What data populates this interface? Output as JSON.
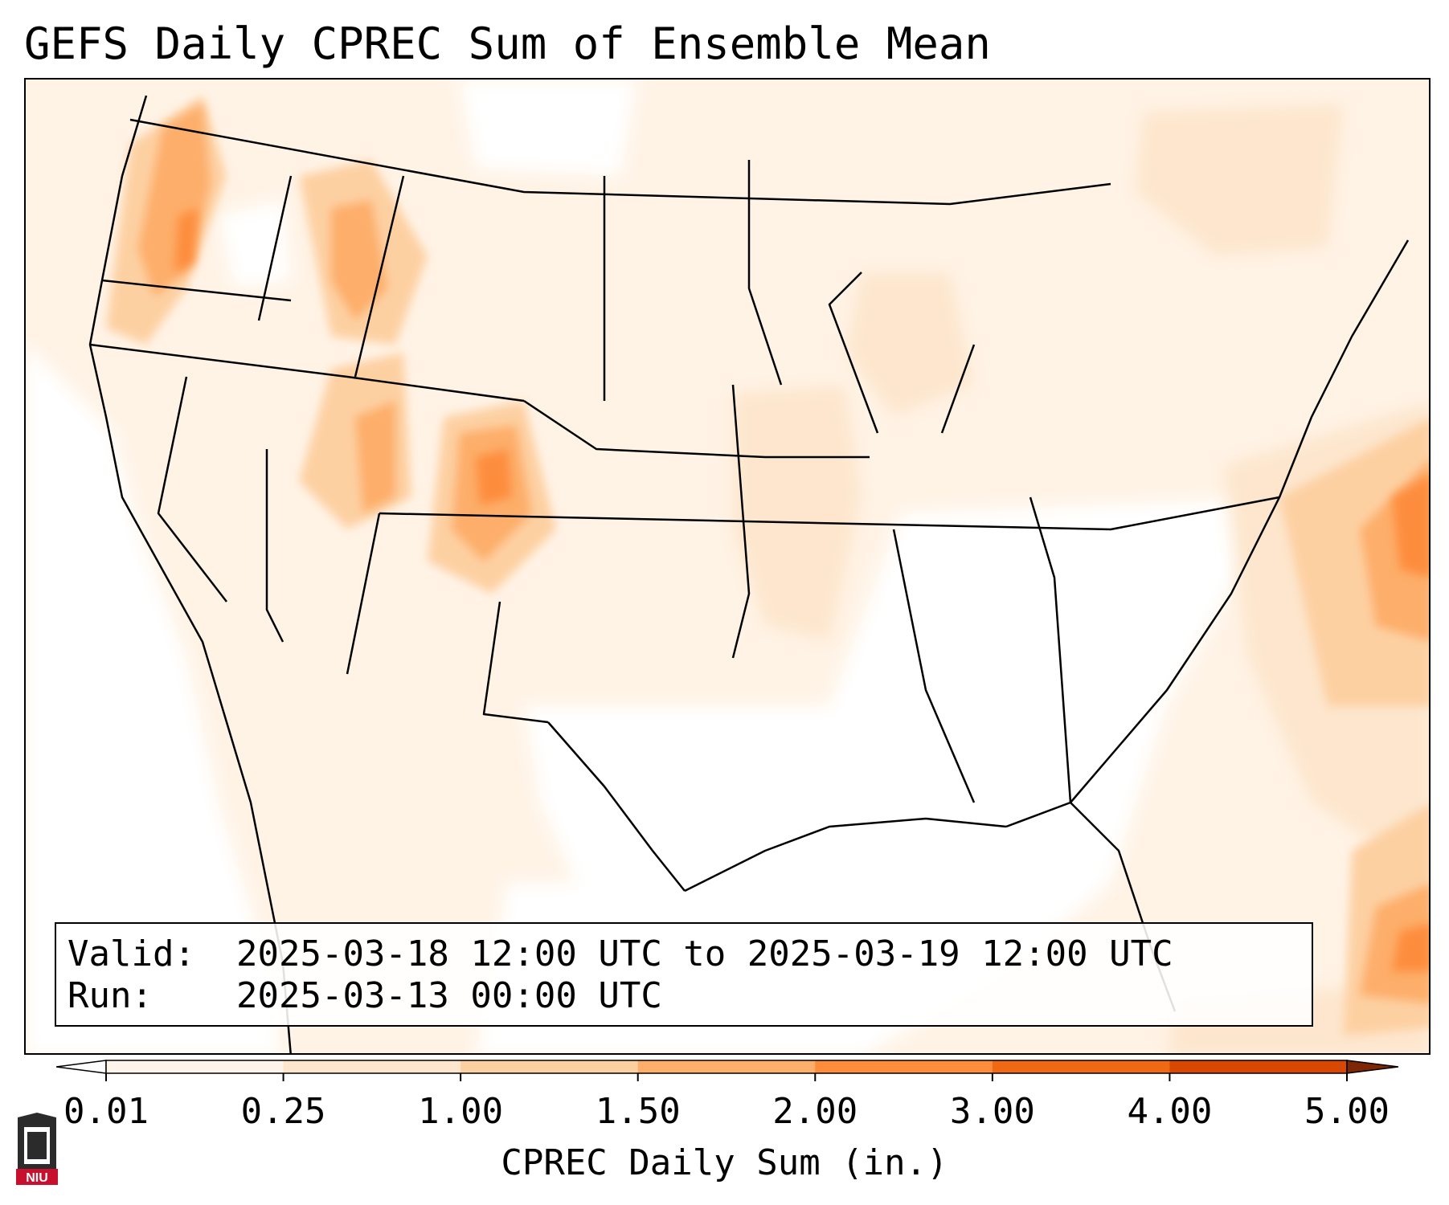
{
  "title": "GEFS Daily CPREC Sum of Ensemble Mean",
  "info": {
    "valid_label": "Valid:",
    "valid_value": "2025-03-18 12:00 UTC to 2025-03-19 12:00 UTC",
    "run_label": "Run:",
    "run_value": "2025-03-13 00:00 UTC"
  },
  "colorbar": {
    "label": "CPREC Daily Sum (in.)",
    "ticks": [
      "0.01",
      "0.25",
      "1.00",
      "1.50",
      "2.00",
      "3.00",
      "4.00",
      "5.00"
    ],
    "colors": [
      "#fff5eb",
      "#fee6ce",
      "#fdd0a2",
      "#fdae6b",
      "#fd8d3c",
      "#f16913",
      "#d94801",
      "#a63603"
    ],
    "under_color": "#ffffff",
    "over_color": "#7f2704",
    "extend": "both"
  },
  "map": {
    "region": "Contiguous United States",
    "projection": "Lambert Conformal",
    "field": "CPREC daily sum"
  },
  "logo_text": "NIU"
}
